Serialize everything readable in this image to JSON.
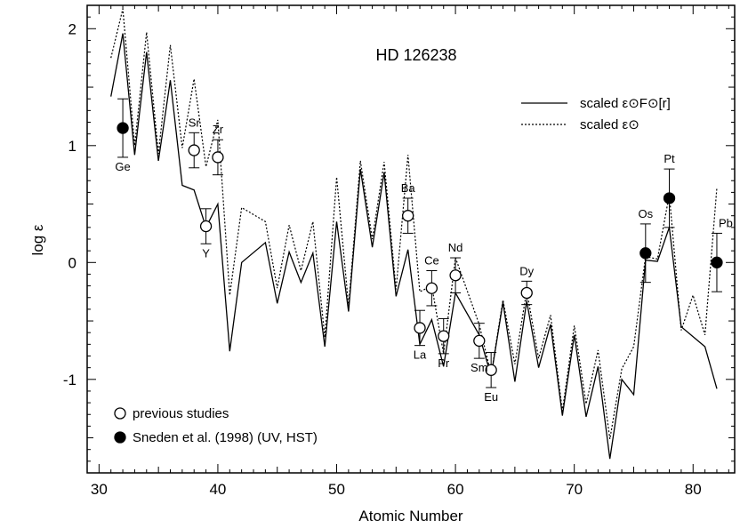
{
  "chart_data": {
    "type": "line",
    "title": "HD 126238",
    "xlabel": "Atomic Number",
    "ylabel": "log ε",
    "xlim": [
      29,
      83.5
    ],
    "ylim": [
      -1.8,
      2.2
    ],
    "xticks": [
      30,
      40,
      50,
      60,
      70,
      80
    ],
    "yticks": [
      -1,
      0,
      1,
      2
    ],
    "grid": false,
    "legend_lines": [
      {
        "text": "scaled ε⊙F⊙[r]",
        "style": "solid"
      },
      {
        "text": "scaled ε⊙",
        "style": "dotted"
      }
    ],
    "legend_markers": [
      {
        "text": "previous studies",
        "marker": "open-circle"
      },
      {
        "text": "Sneden et al. (1998) (UV, HST)",
        "marker": "filled-circle"
      }
    ],
    "series": [
      {
        "style": "solid",
        "x": [
          31,
          32,
          33,
          34,
          35,
          36,
          37,
          38,
          39,
          40,
          41,
          42,
          44,
          45,
          46,
          47,
          48,
          49,
          50,
          51,
          52,
          53,
          54,
          55,
          56,
          57,
          58,
          59,
          60,
          62,
          63,
          64,
          65,
          66,
          67,
          68,
          69,
          70,
          71,
          72,
          73,
          74,
          75,
          76,
          77,
          78,
          79,
          81,
          82
        ],
        "y": [
          1.42,
          1.96,
          0.92,
          1.8,
          0.87,
          1.56,
          0.66,
          0.62,
          0.3,
          0.5,
          -0.76,
          0.0,
          0.17,
          -0.35,
          0.09,
          -0.17,
          0.08,
          -0.72,
          0.35,
          -0.42,
          0.8,
          0.13,
          0.77,
          -0.29,
          0.11,
          -0.7,
          -0.49,
          -0.89,
          -0.26,
          -0.62,
          -0.97,
          -0.34,
          -1.02,
          -0.33,
          -0.9,
          -0.53,
          -1.31,
          -0.62,
          -1.32,
          -0.89,
          -1.68,
          -1.0,
          -1.13,
          0.02,
          0.01,
          0.3,
          -0.55,
          -0.72,
          -1.08
        ]
      },
      {
        "style": "dotted",
        "x": [
          31,
          32,
          33,
          34,
          35,
          36,
          37,
          38,
          39,
          40,
          41,
          42,
          44,
          45,
          46,
          47,
          48,
          49,
          50,
          51,
          52,
          53,
          54,
          55,
          56,
          57,
          58,
          59,
          60,
          62,
          63,
          64,
          65,
          66,
          67,
          68,
          69,
          70,
          71,
          72,
          73,
          74,
          75,
          76,
          77,
          78,
          79,
          80,
          81,
          82
        ],
        "y": [
          1.75,
          2.17,
          1.0,
          1.97,
          0.93,
          1.86,
          0.98,
          1.57,
          0.82,
          1.22,
          -0.28,
          0.47,
          0.35,
          -0.22,
          0.32,
          -0.07,
          0.35,
          -0.64,
          0.73,
          -0.37,
          0.87,
          0.2,
          0.86,
          -0.23,
          0.92,
          -0.25,
          -0.2,
          -0.78,
          0.04,
          -0.53,
          -0.96,
          -0.32,
          -0.87,
          -0.24,
          -0.82,
          -0.45,
          -1.27,
          -0.54,
          -1.21,
          -0.75,
          -1.51,
          -0.91,
          -0.72,
          0.05,
          0.03,
          0.58,
          -0.58,
          -0.28,
          -0.62,
          0.64
        ]
      }
    ],
    "points": [
      {
        "label": "Ge",
        "x": 32,
        "y": 1.15,
        "err": 0.25,
        "filled": true,
        "label_pos": "below"
      },
      {
        "label": "Sr",
        "x": 38,
        "y": 0.96,
        "err": 0.15,
        "filled": false,
        "label_pos": "above"
      },
      {
        "label": "Y",
        "x": 39,
        "y": 0.31,
        "err": 0.15,
        "filled": false,
        "label_pos": "below"
      },
      {
        "label": "Zr",
        "x": 40,
        "y": 0.9,
        "err": 0.15,
        "filled": false,
        "label_pos": "above"
      },
      {
        "label": "Ba",
        "x": 56,
        "y": 0.4,
        "err": 0.15,
        "filled": false,
        "label_pos": "above"
      },
      {
        "label": "La",
        "x": 57,
        "y": -0.56,
        "err": 0.15,
        "filled": false,
        "label_pos": "below"
      },
      {
        "label": "Ce",
        "x": 58,
        "y": -0.22,
        "err": 0.15,
        "filled": false,
        "label_pos": "above"
      },
      {
        "label": "Pr",
        "x": 59,
        "y": -0.63,
        "err": 0.15,
        "filled": false,
        "label_pos": "below"
      },
      {
        "label": "Nd",
        "x": 60,
        "y": -0.11,
        "err": 0.15,
        "filled": false,
        "label_pos": "above"
      },
      {
        "label": "Sm",
        "x": 62,
        "y": -0.67,
        "err": 0.15,
        "filled": false,
        "label_pos": "below"
      },
      {
        "label": "Eu",
        "x": 63,
        "y": -0.92,
        "err": 0.15,
        "filled": false,
        "label_pos": "below"
      },
      {
        "label": "Dy",
        "x": 66,
        "y": -0.26,
        "err": 0.1,
        "filled": false,
        "label_pos": "above"
      },
      {
        "label": "Os",
        "x": 76,
        "y": 0.08,
        "err": 0.25,
        "filled": true,
        "label_pos": "above"
      },
      {
        "label": "Pt",
        "x": 78,
        "y": 0.55,
        "err": 0.25,
        "filled": true,
        "label_pos": "above"
      },
      {
        "label": "Pb",
        "x": 82,
        "y": 0.0,
        "err": 0.25,
        "filled": true,
        "label_pos": "above-right"
      }
    ]
  }
}
